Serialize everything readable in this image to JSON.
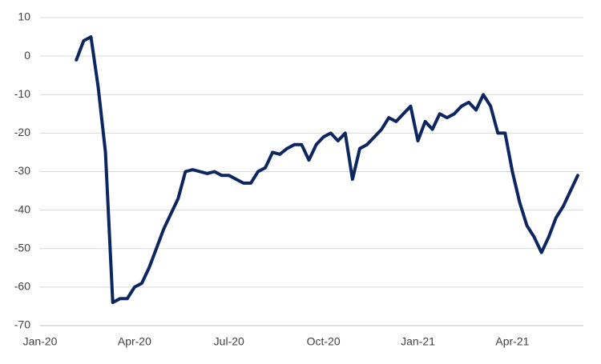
{
  "chart_data": {
    "type": "line",
    "categories": [
      "Jan-20",
      null,
      null,
      null,
      null,
      null,
      null,
      null,
      null,
      null,
      null,
      null,
      null,
      "Apr-20",
      null,
      null,
      null,
      null,
      null,
      null,
      null,
      null,
      null,
      null,
      null,
      null,
      "Jul-20",
      null,
      null,
      null,
      null,
      null,
      null,
      null,
      null,
      null,
      null,
      null,
      null,
      "Oct-20",
      null,
      null,
      null,
      null,
      null,
      null,
      null,
      null,
      null,
      null,
      null,
      null,
      "Jan-21",
      null,
      null,
      null,
      null,
      null,
      null,
      null,
      null,
      null,
      null,
      null,
      null,
      "Apr-21",
      null,
      null,
      null,
      null,
      null,
      null,
      null,
      null,
      null
    ],
    "series": [
      {
        "color": "#0c2661",
        "values": [
          null,
          null,
          null,
          null,
          null,
          -1,
          4,
          5,
          -8,
          -25,
          -64,
          -63,
          -63,
          -60,
          -59,
          -55,
          -50,
          -45,
          -41,
          -37,
          -30,
          -29.5,
          -30,
          -30.5,
          -30,
          -31,
          -31,
          -32,
          -33,
          -33,
          -30,
          -29,
          -25,
          -25.5,
          -24,
          -23,
          -23,
          -27,
          -23,
          -21,
          -20,
          -22,
          -20,
          -32,
          -24,
          -23,
          -21,
          -19,
          -16,
          -17,
          -15,
          -13,
          -22,
          -17,
          -19,
          -15,
          -16,
          -15,
          -13,
          -12,
          -14,
          -10,
          -13,
          -20,
          -20,
          -30,
          -38,
          -44,
          -47,
          -51,
          -47,
          -42,
          -39,
          -35,
          -31
        ]
      }
    ],
    "ylim": [
      -70,
      10
    ],
    "yticks": [
      -70,
      -60,
      -50,
      -40,
      -30,
      -20,
      -10,
      0,
      10
    ],
    "grid": true
  }
}
